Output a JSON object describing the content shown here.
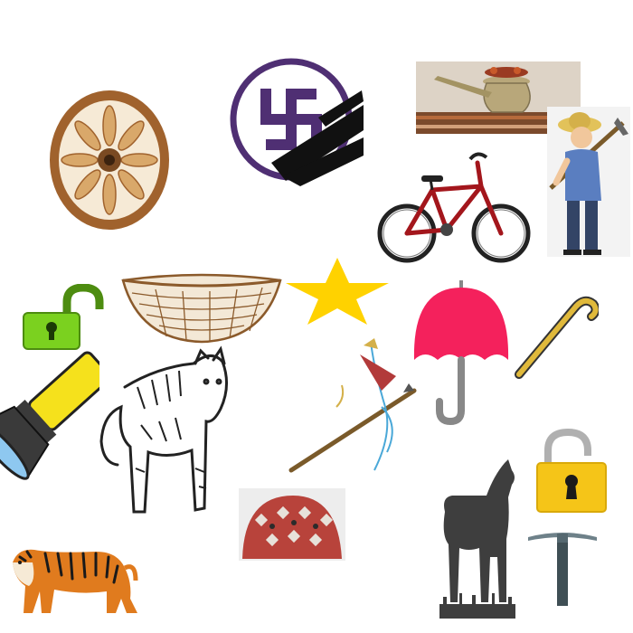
{
  "canvas": {
    "background": "#ffffff"
  },
  "items": [
    {
      "name": "dharma-wheel",
      "icon": "dharma-wheel-icon",
      "colors": {
        "rim": "#a0622d",
        "fill": "#f6ead6",
        "spoke": "#d9a86a",
        "hub": "#7a4a22"
      }
    },
    {
      "name": "swastika-emblem",
      "icon": "swastika-icon",
      "colors": {
        "symbol": "#4f2f73",
        "smear": "#111111"
      }
    },
    {
      "name": "brass-vessel-photo",
      "icon": "brass-vessel-icon",
      "colors": {
        "brass": "#b8a77a",
        "flowers": "#9a3b22",
        "table": "#7b4a2c"
      }
    },
    {
      "name": "bicycle",
      "icon": "bicycle-icon",
      "colors": {
        "frame": "#a3161c",
        "tire": "#222222"
      }
    },
    {
      "name": "farmer-with-hoe",
      "icon": "farmer-icon",
      "colors": {
        "hat": "#e2c25a",
        "shirt": "#5a7ec0",
        "pants": "#334466"
      }
    },
    {
      "name": "padlock-open-green",
      "icon": "padlock-open-icon",
      "colors": {
        "body": "#7bd11f",
        "shackle": "#4d8c10"
      }
    },
    {
      "name": "woven-basket",
      "icon": "basket-icon",
      "colors": {
        "weave": "#8b5a2b",
        "fill": "#f3e8d6"
      }
    },
    {
      "name": "yellow-star",
      "icon": "star-icon",
      "colors": {
        "fill": "#ffd200"
      }
    },
    {
      "name": "red-umbrella",
      "icon": "umbrella-icon",
      "colors": {
        "canopy": "#f4215c",
        "handle": "#888888"
      }
    },
    {
      "name": "walking-cane",
      "icon": "cane-icon",
      "colors": {
        "fill": "#e0b93b",
        "outline": "#333333"
      }
    },
    {
      "name": "flashlight",
      "icon": "flashlight-icon",
      "colors": {
        "body": "#f5e11c",
        "head": "#3a3a3a",
        "lens": "#8ec8f0"
      }
    },
    {
      "name": "tiger-line-drawing",
      "icon": "tiger-outline-icon",
      "colors": {
        "line": "#222222"
      }
    },
    {
      "name": "spear-with-flag",
      "icon": "spear-icon",
      "colors": {
        "shaft": "#7a5a2a",
        "flag": "#b23a3a",
        "accent": "#4aa8d8"
      }
    },
    {
      "name": "embroidered-cap",
      "icon": "cap-icon",
      "colors": {
        "base": "#b8433b",
        "pattern": "#e7e1d9"
      }
    },
    {
      "name": "tiger-photo",
      "icon": "tiger-icon",
      "colors": {
        "fur": "#e07b1e",
        "stripe": "#1a1a1a",
        "belly": "#f6ead6"
      }
    },
    {
      "name": "goat-silhouette",
      "icon": "goat-icon",
      "colors": {
        "fill": "#3e3e3e"
      }
    },
    {
      "name": "padlock-open-yellow",
      "icon": "padlock-open-icon",
      "colors": {
        "body": "#f5c518",
        "shackle": "#b0b0b0",
        "keyhole": "#1a1a1a"
      }
    },
    {
      "name": "pickaxe",
      "icon": "pickaxe-icon",
      "colors": {
        "head": "#6e8189",
        "handle": "#3f4f55"
      }
    }
  ]
}
